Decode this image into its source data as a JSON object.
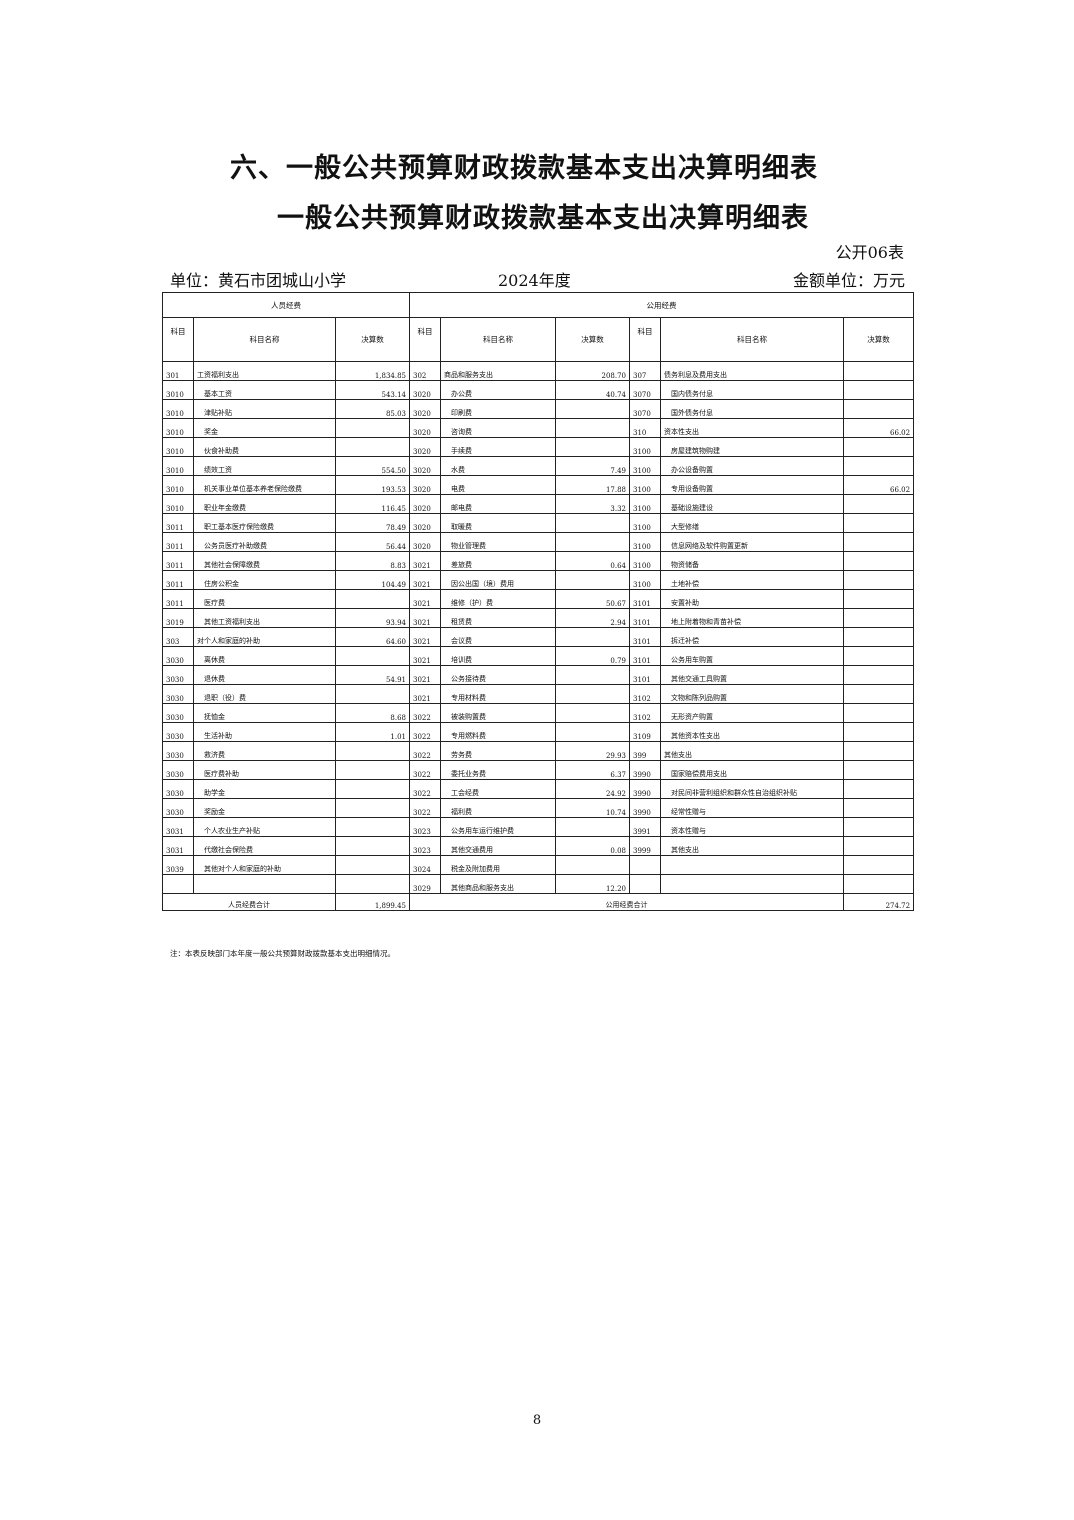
{
  "title_main": "六、一般公共预算财政拨款基本支出决算明细表",
  "title_sub": "一般公共预算财政拨款基本支出决算明细表",
  "form_code": "公开06表",
  "unit": "单位：黄石市团城山小学",
  "year": "2024年度",
  "currency": "金额单位：万元",
  "table": {
    "group_personnel": "人员经费",
    "group_public": "公用经费",
    "col_code": "科目",
    "col_name": "科目名称",
    "col_amount": "决算数",
    "personnel_rows": [
      [
        "301",
        "工资福利支出",
        "1,834.85",
        0
      ],
      [
        "3010",
        "基本工资",
        "543.14",
        1
      ],
      [
        "3010",
        "津贴补贴",
        "85.03",
        1
      ],
      [
        "3010",
        "奖金",
        "",
        1
      ],
      [
        "3010",
        "伙食补助费",
        "",
        1
      ],
      [
        "3010",
        "绩效工资",
        "554.50",
        1
      ],
      [
        "3010",
        "机关事业单位基本养老保险缴费",
        "193.53",
        1
      ],
      [
        "3010",
        "职业年金缴费",
        "116.45",
        1
      ],
      [
        "3011",
        "职工基本医疗保险缴费",
        "78.49",
        1
      ],
      [
        "3011",
        "公务员医疗补助缴费",
        "56.44",
        1
      ],
      [
        "3011",
        "其他社会保障缴费",
        "8.83",
        1
      ],
      [
        "3011",
        "住房公积金",
        "104.49",
        1
      ],
      [
        "3011",
        "医疗费",
        "",
        1
      ],
      [
        "3019",
        "其他工资福利支出",
        "93.94",
        1
      ],
      [
        "303",
        "对个人和家庭的补助",
        "64.60",
        0
      ],
      [
        "3030",
        "离休费",
        "",
        1
      ],
      [
        "3030",
        "退休费",
        "54.91",
        1
      ],
      [
        "3030",
        "退职（役）费",
        "",
        1
      ],
      [
        "3030",
        "抚恤金",
        "8.68",
        1
      ],
      [
        "3030",
        "生活补助",
        "1.01",
        1
      ],
      [
        "3030",
        "救济费",
        "",
        1
      ],
      [
        "3030",
        "医疗费补助",
        "",
        1
      ],
      [
        "3030",
        "助学金",
        "",
        1
      ],
      [
        "3030",
        "奖励金",
        "",
        1
      ],
      [
        "3031",
        "个人农业生产补贴",
        "",
        1
      ],
      [
        "3031",
        "代缴社会保险费",
        "",
        1
      ],
      [
        "3039",
        "其他对个人和家庭的补助",
        "",
        1
      ],
      [
        "",
        "",
        "",
        0
      ]
    ],
    "public_rows_a": [
      [
        "302",
        "商品和服务支出",
        "208.70",
        0
      ],
      [
        "3020",
        "办公费",
        "40.74",
        1
      ],
      [
        "3020",
        "印刷费",
        "",
        1
      ],
      [
        "3020",
        "咨询费",
        "",
        1
      ],
      [
        "3020",
        "手续费",
        "",
        1
      ],
      [
        "3020",
        "水费",
        "7.49",
        1
      ],
      [
        "3020",
        "电费",
        "17.88",
        1
      ],
      [
        "3020",
        "邮电费",
        "3.32",
        1
      ],
      [
        "3020",
        "取暖费",
        "",
        1
      ],
      [
        "3020",
        "物业管理费",
        "",
        1
      ],
      [
        "3021",
        "差旅费",
        "0.64",
        1
      ],
      [
        "3021",
        "因公出国（境）费用",
        "",
        1
      ],
      [
        "3021",
        "维修（护）费",
        "50.67",
        1
      ],
      [
        "3021",
        "租赁费",
        "2.94",
        1
      ],
      [
        "3021",
        "会议费",
        "",
        1
      ],
      [
        "3021",
        "培训费",
        "0.79",
        1
      ],
      [
        "3021",
        "公务接待费",
        "",
        1
      ],
      [
        "3021",
        "专用材料费",
        "",
        1
      ],
      [
        "3022",
        "被装购置费",
        "",
        1
      ],
      [
        "3022",
        "专用燃料费",
        "",
        1
      ],
      [
        "3022",
        "劳务费",
        "29.93",
        1
      ],
      [
        "3022",
        "委托业务费",
        "6.37",
        1
      ],
      [
        "3022",
        "工会经费",
        "24.92",
        1
      ],
      [
        "3022",
        "福利费",
        "10.74",
        1
      ],
      [
        "3023",
        "公务用车运行维护费",
        "",
        1
      ],
      [
        "3023",
        "其他交通费用",
        "0.08",
        1
      ],
      [
        "3024",
        "税金及附加费用",
        "",
        1
      ],
      [
        "3029",
        "其他商品和服务支出",
        "12.20",
        1
      ]
    ],
    "public_rows_b": [
      [
        "307",
        "债务利息及费用支出",
        "",
        0
      ],
      [
        "3070",
        "国内债务付息",
        "",
        1
      ],
      [
        "3070",
        "国外债务付息",
        "",
        1
      ],
      [
        "310",
        "资本性支出",
        "66.02",
        0
      ],
      [
        "3100",
        "房屋建筑物购建",
        "",
        1
      ],
      [
        "3100",
        "办公设备购置",
        "",
        1
      ],
      [
        "3100",
        "专用设备购置",
        "66.02",
        1
      ],
      [
        "3100",
        "基础设施建设",
        "",
        1
      ],
      [
        "3100",
        "大型修缮",
        "",
        1
      ],
      [
        "3100",
        "信息网络及软件购置更新",
        "",
        1
      ],
      [
        "3100",
        "物资储备",
        "",
        1
      ],
      [
        "3100",
        "土地补偿",
        "",
        1
      ],
      [
        "3101",
        "安置补助",
        "",
        1
      ],
      [
        "3101",
        "地上附着物和青苗补偿",
        "",
        1
      ],
      [
        "3101",
        "拆迁补偿",
        "",
        1
      ],
      [
        "3101",
        "公务用车购置",
        "",
        1
      ],
      [
        "3101",
        "其他交通工具购置",
        "",
        1
      ],
      [
        "3102",
        "文物和陈列品购置",
        "",
        1
      ],
      [
        "3102",
        "无形资产购置",
        "",
        1
      ],
      [
        "3109",
        "其他资本性支出",
        "",
        1
      ],
      [
        "399",
        "其他支出",
        "",
        0
      ],
      [
        "3990",
        "国家赔偿费用支出",
        "",
        1
      ],
      [
        "3990",
        "对民间非营利组织和群众性自治组织补贴",
        "",
        1
      ],
      [
        "3990",
        "经常性赠与",
        "",
        1
      ],
      [
        "3991",
        "资本性赠与",
        "",
        1
      ],
      [
        "3999",
        "其他支出",
        "",
        1
      ],
      [
        "",
        "",
        "",
        0
      ],
      [
        "",
        "",
        "",
        0
      ]
    ],
    "personnel_total_label": "人员经费合计",
    "personnel_total": "1,899.45",
    "public_total_label": "公用经费合计",
    "public_total": "274.72"
  },
  "note": "注：本表反映部门本年度一般公共预算财政拨款基本支出明细情况。",
  "page_number": "8"
}
